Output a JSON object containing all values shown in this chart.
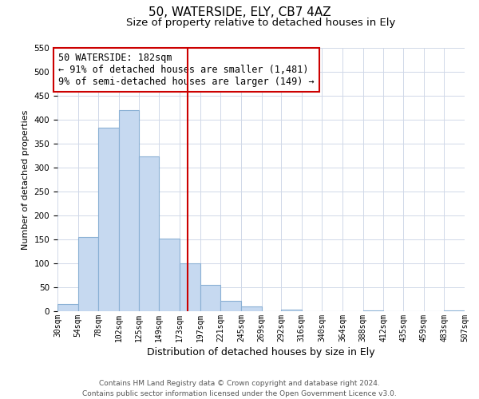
{
  "title": "50, WATERSIDE, ELY, CB7 4AZ",
  "subtitle": "Size of property relative to detached houses in Ely",
  "xlabel": "Distribution of detached houses by size in Ely",
  "ylabel": "Number of detached properties",
  "bin_edges": [
    30,
    54,
    78,
    102,
    125,
    149,
    173,
    197,
    221,
    245,
    269,
    292,
    316,
    340,
    364,
    388,
    412,
    435,
    459,
    483,
    507
  ],
  "bar_heights": [
    15,
    155,
    383,
    420,
    323,
    152,
    100,
    55,
    22,
    10,
    0,
    3,
    0,
    0,
    0,
    1,
    0,
    0,
    0,
    2
  ],
  "bar_color": "#c6d9f0",
  "bar_edge_color": "#8ab0d4",
  "grid_color": "#d0d8e8",
  "vline_x": 182,
  "vline_color": "#cc0000",
  "annotation_text": "50 WATERSIDE: 182sqm\n← 91% of detached houses are smaller (1,481)\n9% of semi-detached houses are larger (149) →",
  "annotation_box_color": "#ffffff",
  "annotation_box_edge_color": "#cc0000",
  "ylim": [
    0,
    550
  ],
  "yticks": [
    0,
    50,
    100,
    150,
    200,
    250,
    300,
    350,
    400,
    450,
    500,
    550
  ],
  "tick_labels": [
    "30sqm",
    "54sqm",
    "78sqm",
    "102sqm",
    "125sqm",
    "149sqm",
    "173sqm",
    "197sqm",
    "221sqm",
    "245sqm",
    "269sqm",
    "292sqm",
    "316sqm",
    "340sqm",
    "364sqm",
    "388sqm",
    "412sqm",
    "435sqm",
    "459sqm",
    "483sqm",
    "507sqm"
  ],
  "footer_text": "Contains HM Land Registry data © Crown copyright and database right 2024.\nContains public sector information licensed under the Open Government Licence v3.0.",
  "title_fontsize": 11,
  "subtitle_fontsize": 9.5,
  "xlabel_fontsize": 9,
  "ylabel_fontsize": 8,
  "tick_fontsize": 7,
  "annotation_fontsize": 8.5,
  "footer_fontsize": 6.5
}
